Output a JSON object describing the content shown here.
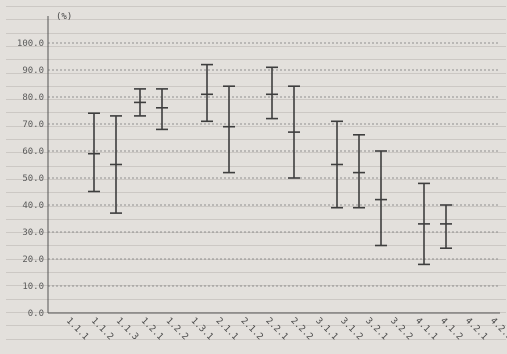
{
  "chart_data": {
    "type": "errorbar",
    "unit": "(%)",
    "yticks": [
      "0.0",
      "10.0",
      "20.0",
      "30.0",
      "40.0",
      "50.0",
      "60.0",
      "70.0",
      "80.0",
      "90.0",
      "100.0"
    ],
    "ylim": [
      0,
      100
    ],
    "grid": "horizontal dashed",
    "categories": [
      {
        "label": "1.1.1",
        "series": [
          {
            "mean": 59,
            "low": 45,
            "high": 74
          },
          {
            "mean": 55,
            "low": 37,
            "high": 73
          }
        ]
      },
      {
        "label": "1.1.2",
        "series": [
          {
            "mean": 78,
            "low": 73,
            "high": 83
          },
          {
            "mean": 76,
            "low": 68,
            "high": 83
          }
        ]
      },
      {
        "label": "1.1.3",
        "series": [
          {
            "mean": 81,
            "low": 71,
            "high": 92
          },
          {
            "mean": 69,
            "low": 52,
            "high": 84
          }
        ]
      },
      {
        "label": "1.2.1",
        "series": [
          {
            "mean": 81,
            "low": 72,
            "high": 91
          },
          {
            "mean": 67,
            "low": 50,
            "high": 84
          }
        ]
      },
      {
        "label": "1.2.2",
        "series": [
          {
            "mean": 55,
            "low": 39,
            "high": 71
          },
          {
            "mean": 52,
            "low": 39,
            "high": 66
          }
        ]
      },
      {
        "label": "1.3.1",
        "series": [
          {
            "mean": 42,
            "low": 25,
            "high": 60
          }
        ]
      },
      {
        "label": "2.1.1",
        "series": [
          {
            "mean": 33,
            "low": 18,
            "high": 48
          },
          {
            "mean": 33,
            "low": 24,
            "high": 40
          }
        ]
      }
    ],
    "xlabels": [
      "1.1.1",
      "1.1.2",
      "1.1.3",
      "1.2.1",
      "1.2.2",
      "1.3.1",
      "2.1.1",
      "2.1.2",
      "2.2.1",
      "2.2.2",
      "3.1.1",
      "3.1.2",
      "3.2.1",
      "3.2.2",
      "4.1.1",
      "4.1.2",
      "4.2.1",
      "4.2.2"
    ]
  }
}
